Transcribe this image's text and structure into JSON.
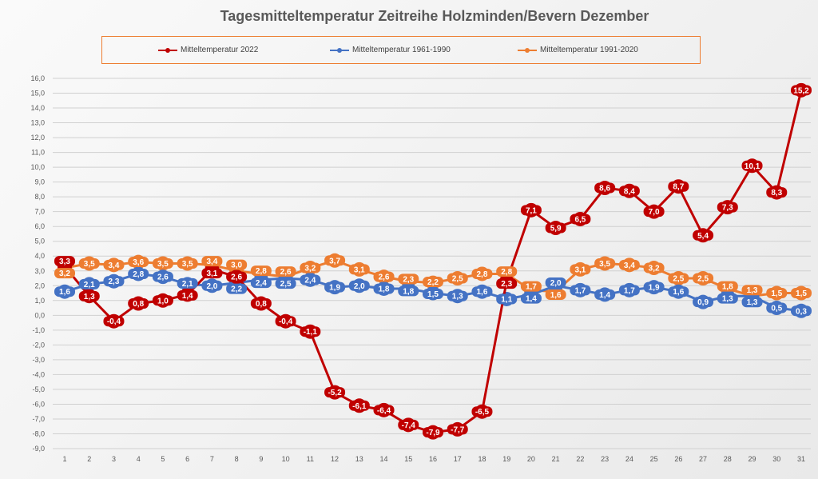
{
  "chart_data": {
    "type": "line",
    "title": "Tagesmitteltemperatur Zeitreihe Holzminden/Bevern Dezember",
    "xlabel": "",
    "ylabel": "",
    "ylim": [
      -9,
      16
    ],
    "ytick_step": 1,
    "grid": true,
    "legend_position": "top",
    "categories": [
      "1",
      "2",
      "3",
      "4",
      "5",
      "6",
      "7",
      "8",
      "9",
      "10",
      "11",
      "12",
      "13",
      "14",
      "15",
      "16",
      "17",
      "18",
      "19",
      "20",
      "21",
      "22",
      "23",
      "24",
      "25",
      "26",
      "27",
      "28",
      "29",
      "30",
      "31"
    ],
    "series": [
      {
        "name": "Mitteltemperatur 1991-2020",
        "color": "#ed7d31",
        "values": [
          3.2,
          3.5,
          3.4,
          3.6,
          3.5,
          3.5,
          3.4,
          3.0,
          2.8,
          2.6,
          3.2,
          3.7,
          3.1,
          2.6,
          2.3,
          2.2,
          2.5,
          2.8,
          2.8,
          1.7,
          1.6,
          3.1,
          3.5,
          3.4,
          3.2,
          2.5,
          2.5,
          1.8,
          1.3,
          1.5,
          1.5
        ]
      },
      {
        "name": "Mitteltemperatur 1961-1990",
        "color": "#4472c4",
        "values": [
          1.6,
          2.1,
          2.3,
          2.8,
          2.6,
          2.1,
          2.0,
          2.2,
          2.4,
          2.5,
          2.4,
          1.9,
          2.0,
          1.8,
          1.8,
          1.5,
          1.3,
          1.6,
          1.1,
          1.4,
          2.0,
          1.7,
          1.4,
          1.7,
          1.9,
          1.6,
          0.9,
          1.3,
          1.3,
          0.5,
          0.3
        ]
      },
      {
        "name": "Mitteltemperatur 2022",
        "color": "#c00000",
        "values": [
          3.3,
          1.3,
          -0.4,
          0.8,
          1.0,
          1.4,
          3.1,
          2.6,
          0.8,
          -0.4,
          -1.1,
          -5.2,
          -6.1,
          -6.4,
          -7.4,
          -7.9,
          -7.7,
          -6.5,
          2.3,
          7.1,
          5.9,
          6.5,
          8.6,
          8.4,
          7.0,
          8.7,
          5.4,
          7.3,
          10.1,
          8.3,
          15.2
        ]
      }
    ],
    "legend_order": [
      2,
      1,
      0
    ]
  }
}
